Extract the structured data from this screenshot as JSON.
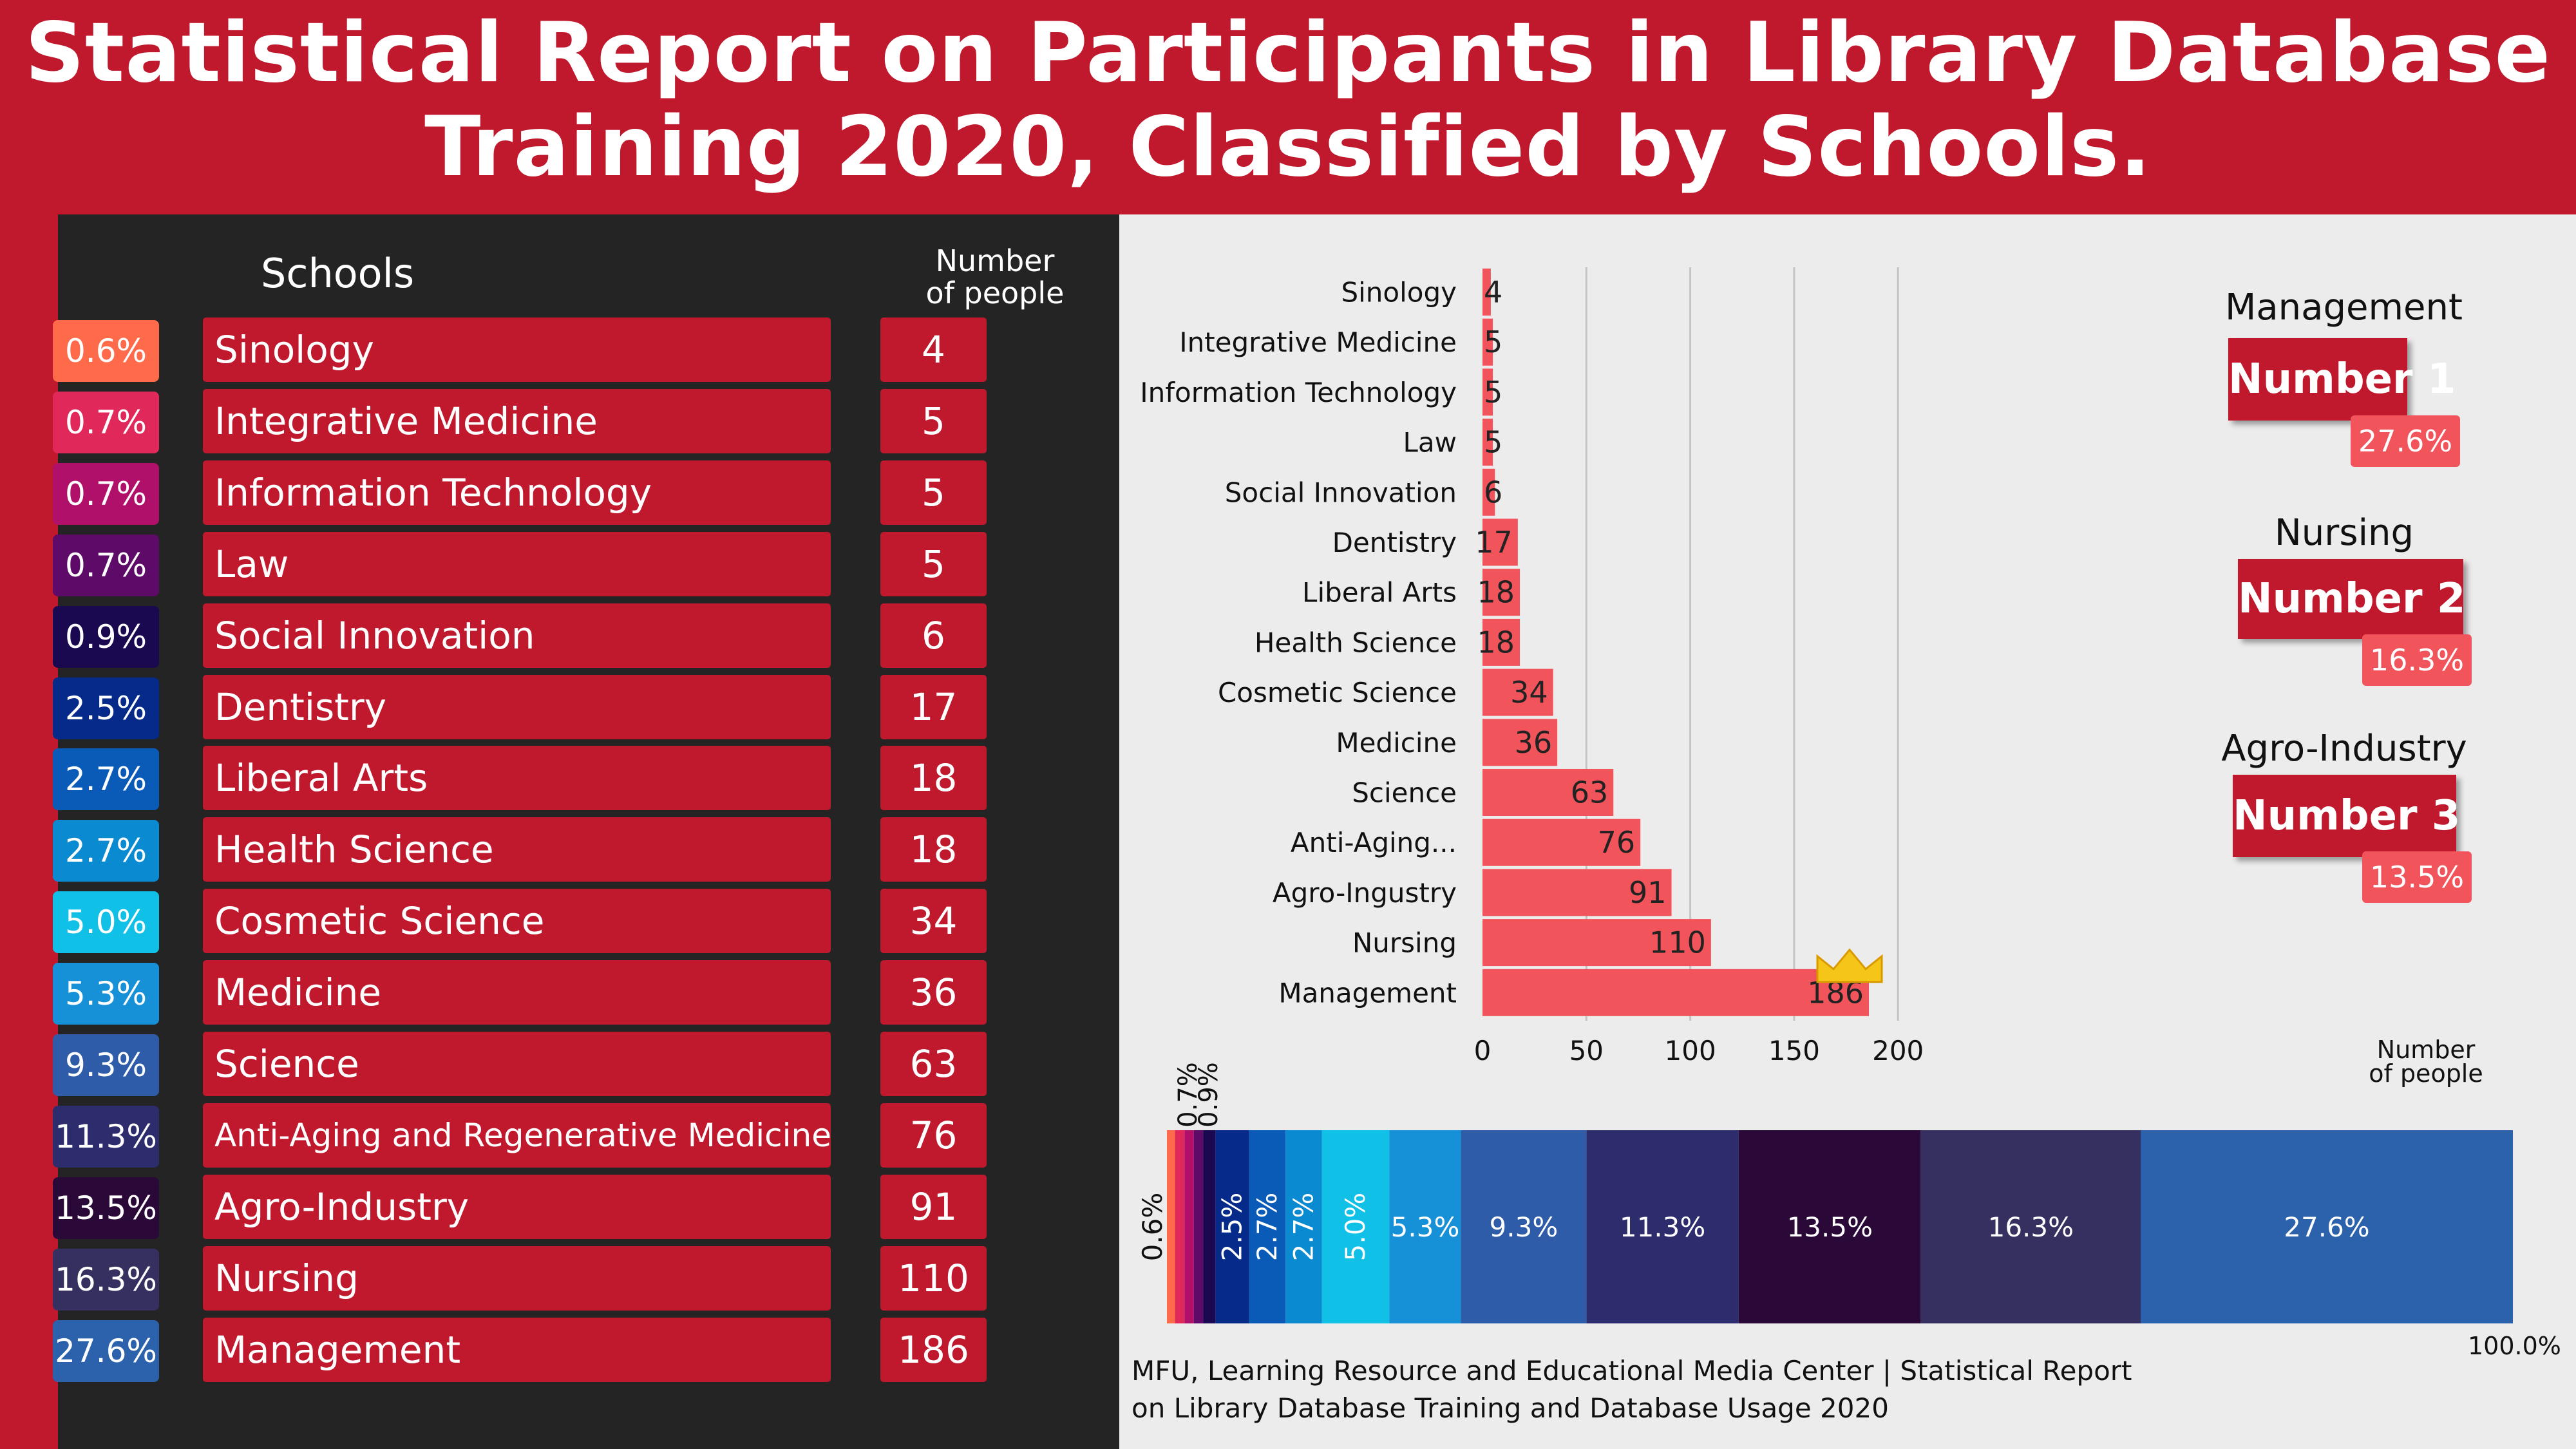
{
  "title": {
    "line1": "Statistical Report on Participants in Library Database",
    "line2": "Training 2020, Classified by Schools."
  },
  "table": {
    "col_schools": "Schools",
    "col_number": [
      "Number",
      "of people"
    ],
    "rows": [
      {
        "pct": "0.6%",
        "school": "Sinology",
        "count": "4",
        "color": "#ff6b4a"
      },
      {
        "pct": "0.7%",
        "school": "Integrative Medicine",
        "count": "5",
        "color": "#e0285a"
      },
      {
        "pct": "0.7%",
        "school": "Information Technology",
        "count": "5",
        "color": "#b0106a"
      },
      {
        "pct": "0.7%",
        "school": "Law",
        "count": "5",
        "color": "#5e0a68"
      },
      {
        "pct": "0.9%",
        "school": "Social Innovation",
        "count": "6",
        "color": "#1a0850"
      },
      {
        "pct": "2.5%",
        "school": "Dentistry",
        "count": "17",
        "color": "#052a8a"
      },
      {
        "pct": "2.7%",
        "school": "Liberal Arts",
        "count": "18",
        "color": "#0a5ab8"
      },
      {
        "pct": "2.7%",
        "school": "Health Science",
        "count": "18",
        "color": "#0a8ad0"
      },
      {
        "pct": "5.0%",
        "school": "Cosmetic Science",
        "count": "34",
        "color": "#10c0e6"
      },
      {
        "pct": "5.3%",
        "school": "Medicine",
        "count": "36",
        "color": "#1690d6"
      },
      {
        "pct": "9.3%",
        "school": "Science",
        "count": "63",
        "color": "#2e5ca8"
      },
      {
        "pct": "11.3%",
        "school": "Anti-Aging and Regenerative Medicine",
        "count": "76",
        "color": "#2d2d6e"
      },
      {
        "pct": "13.5%",
        "school": "Agro-Industry",
        "count": "91",
        "color": "#2a0838"
      },
      {
        "pct": "16.3%",
        "school": "Nursing",
        "count": "110",
        "color": "#363060"
      },
      {
        "pct": "27.6%",
        "school": "Management",
        "count": "186",
        "color": "#2c62ac"
      }
    ]
  },
  "ranks": [
    {
      "school": "Management",
      "label": "Number 1",
      "pct": "27.6%"
    },
    {
      "school": "Nursing",
      "label": "Number 2",
      "pct": "16.3%"
    },
    {
      "school": "Agro-Industry",
      "label": "Number 3",
      "pct": "13.5%"
    }
  ],
  "chart_data": [
    {
      "type": "bar",
      "orientation": "horizontal",
      "categories": [
        "Sinology",
        "Integrative Medicine",
        "Information Technology",
        "Law",
        "Social Innovation",
        "Dentistry",
        "Liberal Arts",
        "Health Science",
        "Cosmetic Science",
        "Medicine",
        "Science",
        "Anti-Aging...",
        "Agro-Ingustry",
        "Nursing",
        "Management"
      ],
      "values": [
        4,
        5,
        5,
        5,
        6,
        17,
        18,
        18,
        34,
        36,
        63,
        76,
        91,
        110,
        186
      ],
      "xlabel": [
        "Number",
        "of people"
      ],
      "xticks": [
        0,
        50,
        100,
        150,
        200
      ],
      "xlim": [
        0,
        200
      ],
      "grid": true,
      "bar_color": "#f2545b"
    },
    {
      "type": "bar",
      "orientation": "stacked-100",
      "labels": [
        "0.6%",
        "0.7%",
        "0.7%",
        "0.7%",
        "0.9%",
        "2.5%",
        "2.7%",
        "2.7%",
        "5.0%",
        "5.3%",
        "9.3%",
        "11.3%",
        "13.5%",
        "16.3%",
        "27.6%"
      ],
      "values": [
        0.6,
        0.7,
        0.7,
        0.7,
        0.9,
        2.5,
        2.7,
        2.7,
        5.0,
        5.3,
        9.3,
        11.3,
        13.5,
        16.3,
        27.6
      ],
      "colors": [
        "#ff6b4a",
        "#e0285a",
        "#b0106a",
        "#5e0a68",
        "#1a0850",
        "#052a8a",
        "#0a5ab8",
        "#0a8ad0",
        "#10c0e6",
        "#1690d6",
        "#2e5ca8",
        "#2d2d6e",
        "#2a0838",
        "#363060",
        "#2c62ac"
      ],
      "total_label": "100.0%"
    }
  ],
  "footer": {
    "line1": "MFU, Learning Resource and Educational Media Center | Statistical Report",
    "line2": "on Library Database Training and Database Usage 2020"
  }
}
